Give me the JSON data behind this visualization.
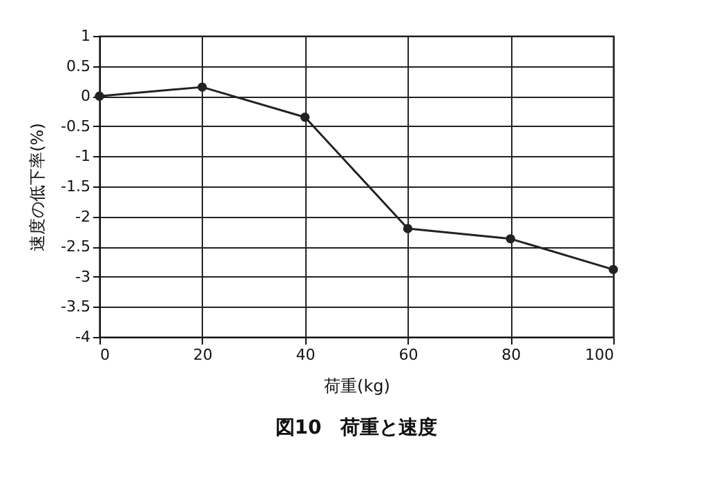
{
  "chart_data": {
    "type": "line",
    "title": "図10　荷重と速度",
    "xlabel": "荷重(kg)",
    "ylabel": "速度の低下率(%)",
    "x": [
      0,
      20,
      40,
      60,
      80,
      100
    ],
    "series": [
      {
        "color": "#222222",
        "values": [
          0,
          0.15,
          -0.35,
          -2.2,
          -2.37,
          -2.88
        ]
      }
    ],
    "xlim": [
      0,
      100
    ],
    "xticks": [
      0,
      20,
      40,
      60,
      80,
      100
    ],
    "ylim": [
      -4,
      1
    ],
    "yticks": [
      -4,
      -3.5,
      -3,
      -2.5,
      -2,
      -1.5,
      -1,
      -0.5,
      0,
      0.5,
      1
    ],
    "grid": true,
    "marker": "circle",
    "line_style": "solid"
  }
}
